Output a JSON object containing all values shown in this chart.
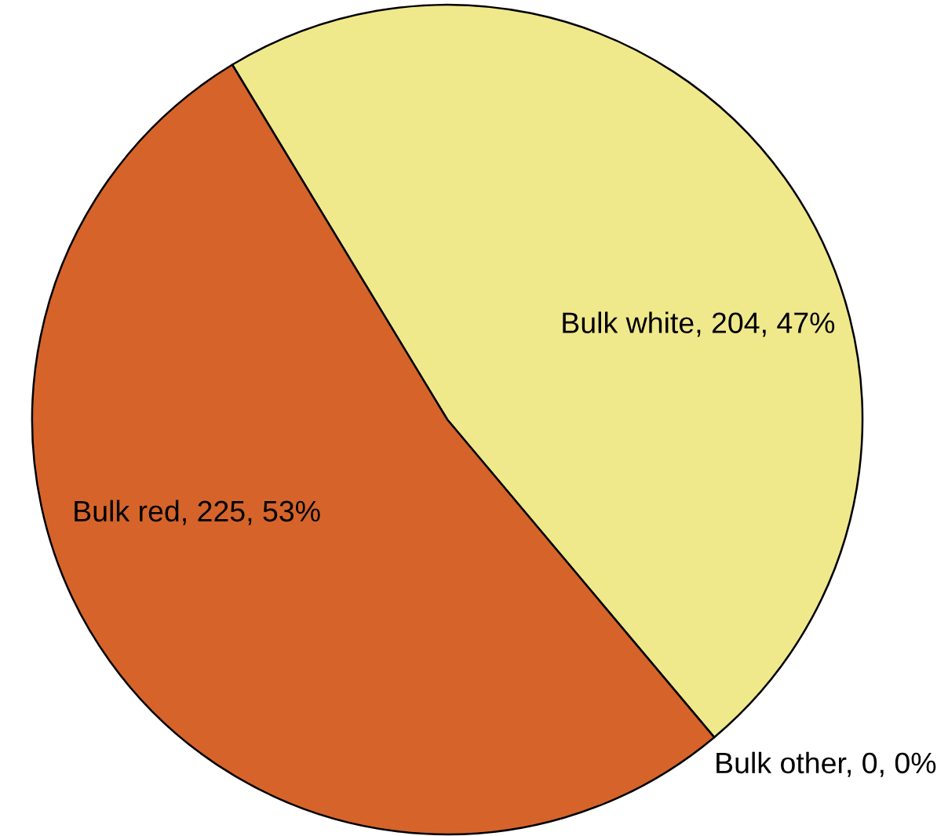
{
  "chart_data": {
    "type": "pie",
    "categories": [
      "Bulk white",
      "Bulk other",
      "Bulk red"
    ],
    "values": [
      204,
      0,
      225
    ],
    "colors": [
      "#f0e98c",
      null,
      "#d6642a"
    ],
    "value_labels": [
      ", 204, 47%",
      ", 0, 0%",
      ", 225, 53%"
    ]
  }
}
